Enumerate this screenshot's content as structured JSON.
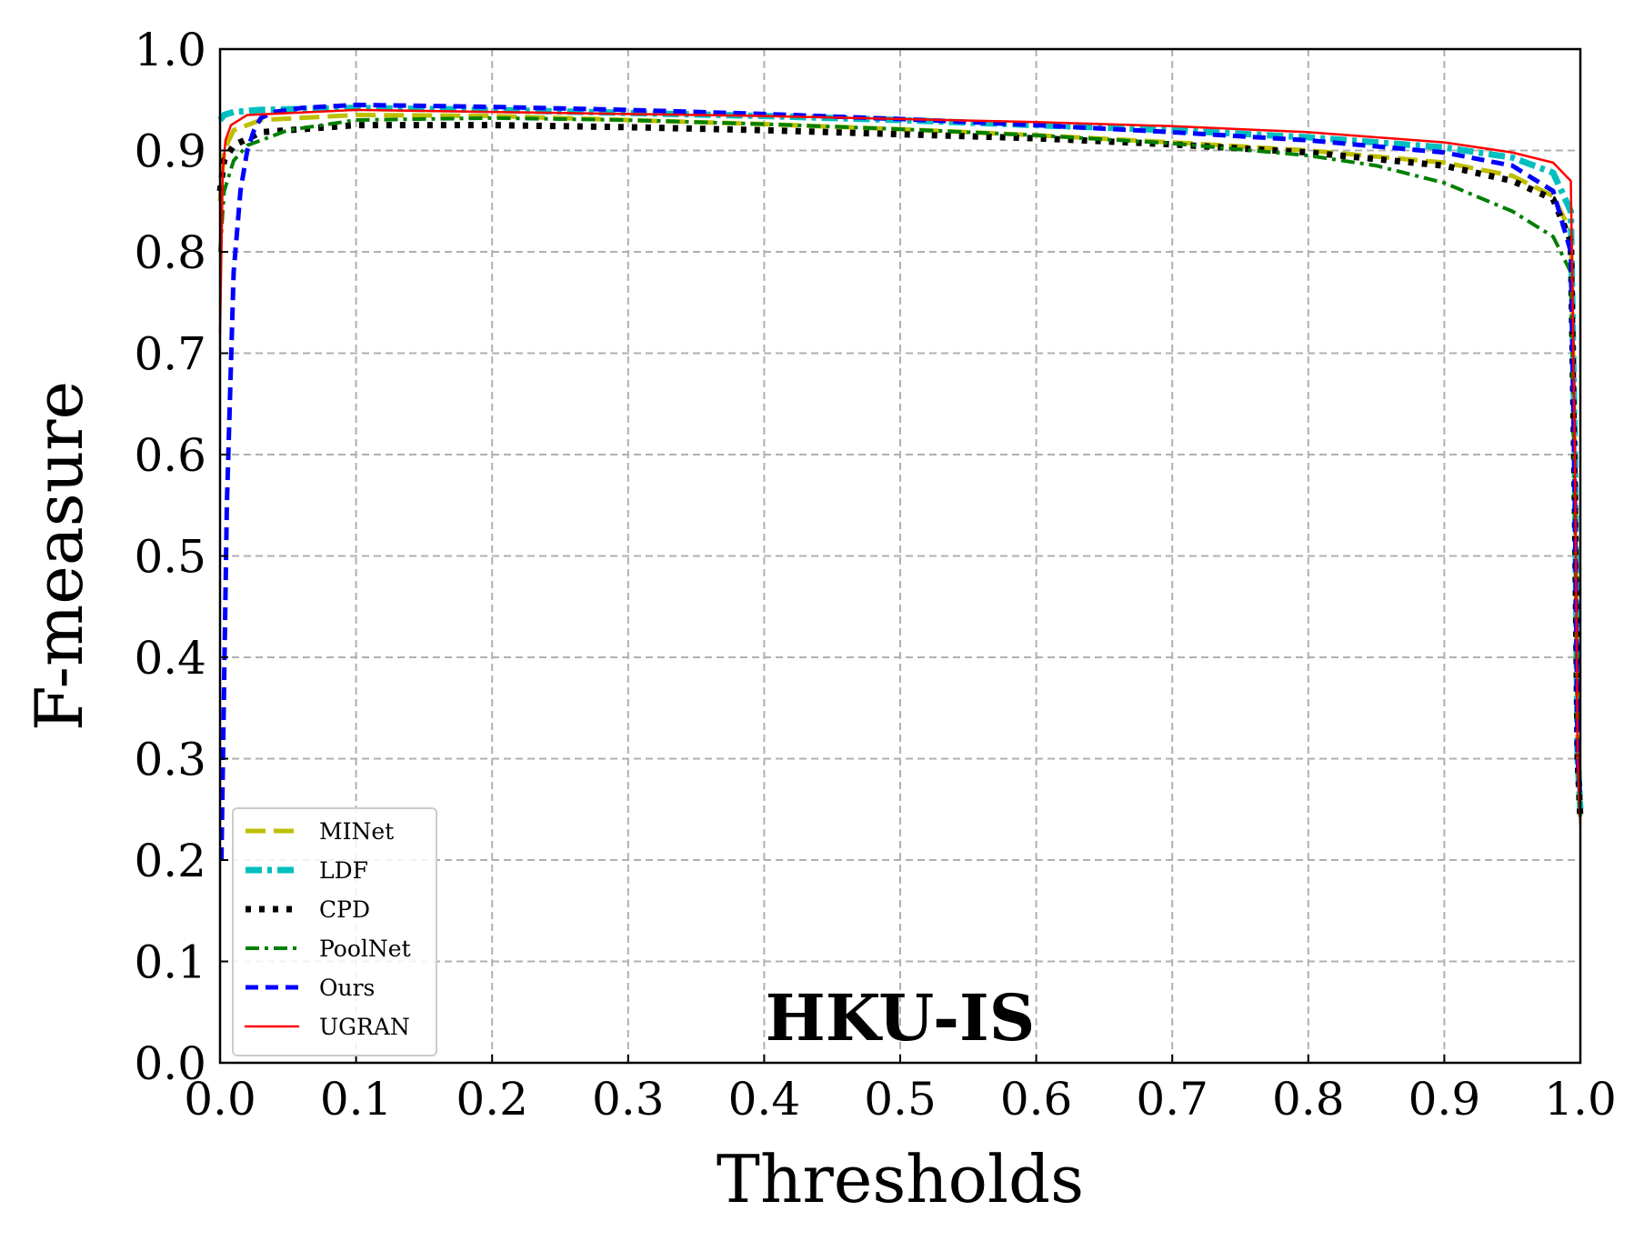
{
  "chart_data": {
    "type": "line",
    "annotation": "HKU-IS",
    "xlabel": "Thresholds",
    "ylabel": "F-measure",
    "xlim": [
      0.0,
      1.0
    ],
    "ylim": [
      0.0,
      1.0
    ],
    "xticks": [
      "0.0",
      "0.1",
      "0.2",
      "0.3",
      "0.4",
      "0.5",
      "0.6",
      "0.7",
      "0.8",
      "0.9",
      "1.0"
    ],
    "yticks": [
      "0.0",
      "0.1",
      "0.2",
      "0.3",
      "0.4",
      "0.5",
      "0.6",
      "0.7",
      "0.8",
      "0.9",
      "1.0"
    ],
    "grid": true,
    "legend_position": "lower-left",
    "series": [
      {
        "name": "MINet",
        "color": "#bfbf00",
        "style": "long-dash",
        "x": [
          0.0,
          0.003,
          0.01,
          0.03,
          0.1,
          0.2,
          0.3,
          0.4,
          0.5,
          0.6,
          0.7,
          0.8,
          0.9,
          0.95,
          0.98,
          0.993,
          0.996,
          0.998,
          1.0
        ],
        "y": [
          0.85,
          0.9,
          0.92,
          0.93,
          0.935,
          0.934,
          0.93,
          0.926,
          0.921,
          0.915,
          0.908,
          0.9,
          0.888,
          0.875,
          0.855,
          0.82,
          0.6,
          0.3,
          0.24
        ]
      },
      {
        "name": "LDF",
        "color": "#00bfbf",
        "style": "dash-dot",
        "x": [
          0.0,
          0.003,
          0.01,
          0.03,
          0.1,
          0.2,
          0.3,
          0.4,
          0.5,
          0.6,
          0.7,
          0.8,
          0.9,
          0.95,
          0.98,
          0.993,
          0.996,
          0.998,
          1.0
        ],
        "y": [
          0.93,
          0.935,
          0.938,
          0.94,
          0.942,
          0.94,
          0.937,
          0.934,
          0.93,
          0.925,
          0.92,
          0.913,
          0.903,
          0.893,
          0.878,
          0.84,
          0.6,
          0.3,
          0.25
        ]
      },
      {
        "name": "CPD",
        "color": "#000000",
        "style": "dotted",
        "x": [
          0.0,
          0.003,
          0.01,
          0.03,
          0.1,
          0.2,
          0.3,
          0.4,
          0.5,
          0.6,
          0.7,
          0.8,
          0.9,
          0.95,
          0.98,
          0.993,
          0.996,
          0.998,
          1.0
        ],
        "y": [
          0.86,
          0.89,
          0.905,
          0.918,
          0.925,
          0.925,
          0.923,
          0.92,
          0.916,
          0.912,
          0.906,
          0.898,
          0.885,
          0.87,
          0.852,
          0.81,
          0.55,
          0.3,
          0.24
        ]
      },
      {
        "name": "PoolNet",
        "color": "#007f00",
        "style": "dash-dot",
        "x": [
          0.0,
          0.003,
          0.01,
          0.02,
          0.05,
          0.1,
          0.2,
          0.3,
          0.4,
          0.5,
          0.6,
          0.7,
          0.8,
          0.85,
          0.9,
          0.95,
          0.98,
          0.993,
          0.996,
          0.998,
          1.0
        ],
        "y": [
          0.8,
          0.86,
          0.89,
          0.905,
          0.92,
          0.93,
          0.932,
          0.93,
          0.926,
          0.921,
          0.915,
          0.907,
          0.895,
          0.885,
          0.868,
          0.84,
          0.815,
          0.78,
          0.55,
          0.3,
          0.24
        ]
      },
      {
        "name": "Ours",
        "color": "#0000ff",
        "style": "dashed",
        "x": [
          0.001,
          0.005,
          0.01,
          0.015,
          0.02,
          0.025,
          0.03,
          0.04,
          0.06,
          0.1,
          0.2,
          0.3,
          0.4,
          0.5,
          0.6,
          0.7,
          0.8,
          0.9,
          0.95,
          0.98,
          0.993,
          0.996,
          0.998,
          1.0
        ],
        "y": [
          0.2,
          0.55,
          0.78,
          0.86,
          0.9,
          0.92,
          0.932,
          0.938,
          0.942,
          0.945,
          0.943,
          0.94,
          0.936,
          0.931,
          0.925,
          0.918,
          0.91,
          0.898,
          0.885,
          0.86,
          0.8,
          0.55,
          0.3,
          0.26
        ]
      },
      {
        "name": "UGRAN",
        "color": "#ff0000",
        "style": "solid",
        "x": [
          0.0,
          0.002,
          0.004,
          0.008,
          0.02,
          0.1,
          0.2,
          0.3,
          0.4,
          0.5,
          0.6,
          0.7,
          0.8,
          0.9,
          0.95,
          0.98,
          0.993,
          0.996,
          0.998,
          1.0
        ],
        "y": [
          0.72,
          0.88,
          0.91,
          0.925,
          0.935,
          0.94,
          0.938,
          0.936,
          0.934,
          0.931,
          0.928,
          0.924,
          0.918,
          0.908,
          0.898,
          0.888,
          0.87,
          0.6,
          0.3,
          0.235
        ]
      }
    ]
  }
}
